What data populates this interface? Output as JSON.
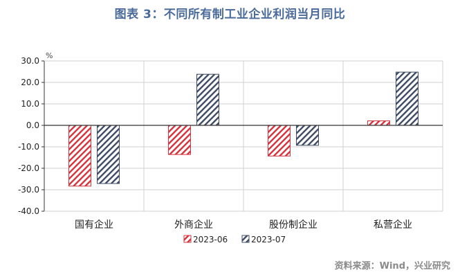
{
  "title": "图表 3：不同所有制工业企业利润当月同比",
  "source": "资料来源：Wind，兴业研究",
  "colors": {
    "title": "#4a6a9a",
    "series_2023_06": "#d4323c",
    "series_2023_07": "#3d4a62",
    "axis": "#333333",
    "grid": "#cfcfcf",
    "source": "#8a8a8a"
  },
  "chart_data": {
    "type": "bar",
    "unit_label": "%",
    "categories": [
      "国有企业",
      "外商企业",
      "股份制企业",
      "私营企业"
    ],
    "series": [
      {
        "name": "2023-06",
        "values": [
          -28.3,
          -13.6,
          -14.3,
          2.1
        ],
        "pattern": "diagonal-hatch",
        "color_key": "series_2023_06"
      },
      {
        "name": "2023-07",
        "values": [
          -27.1,
          23.8,
          -9.3,
          24.8
        ],
        "pattern": "diagonal-hatch",
        "color_key": "series_2023_07"
      }
    ],
    "ylim": [
      -40,
      30
    ],
    "yticks": [
      "-40.0",
      "-30.0",
      "-20.0",
      "-10.0",
      "0.0",
      "10.0",
      "20.0",
      "30.0"
    ],
    "grid": true,
    "legend_position": "bottom-center"
  }
}
